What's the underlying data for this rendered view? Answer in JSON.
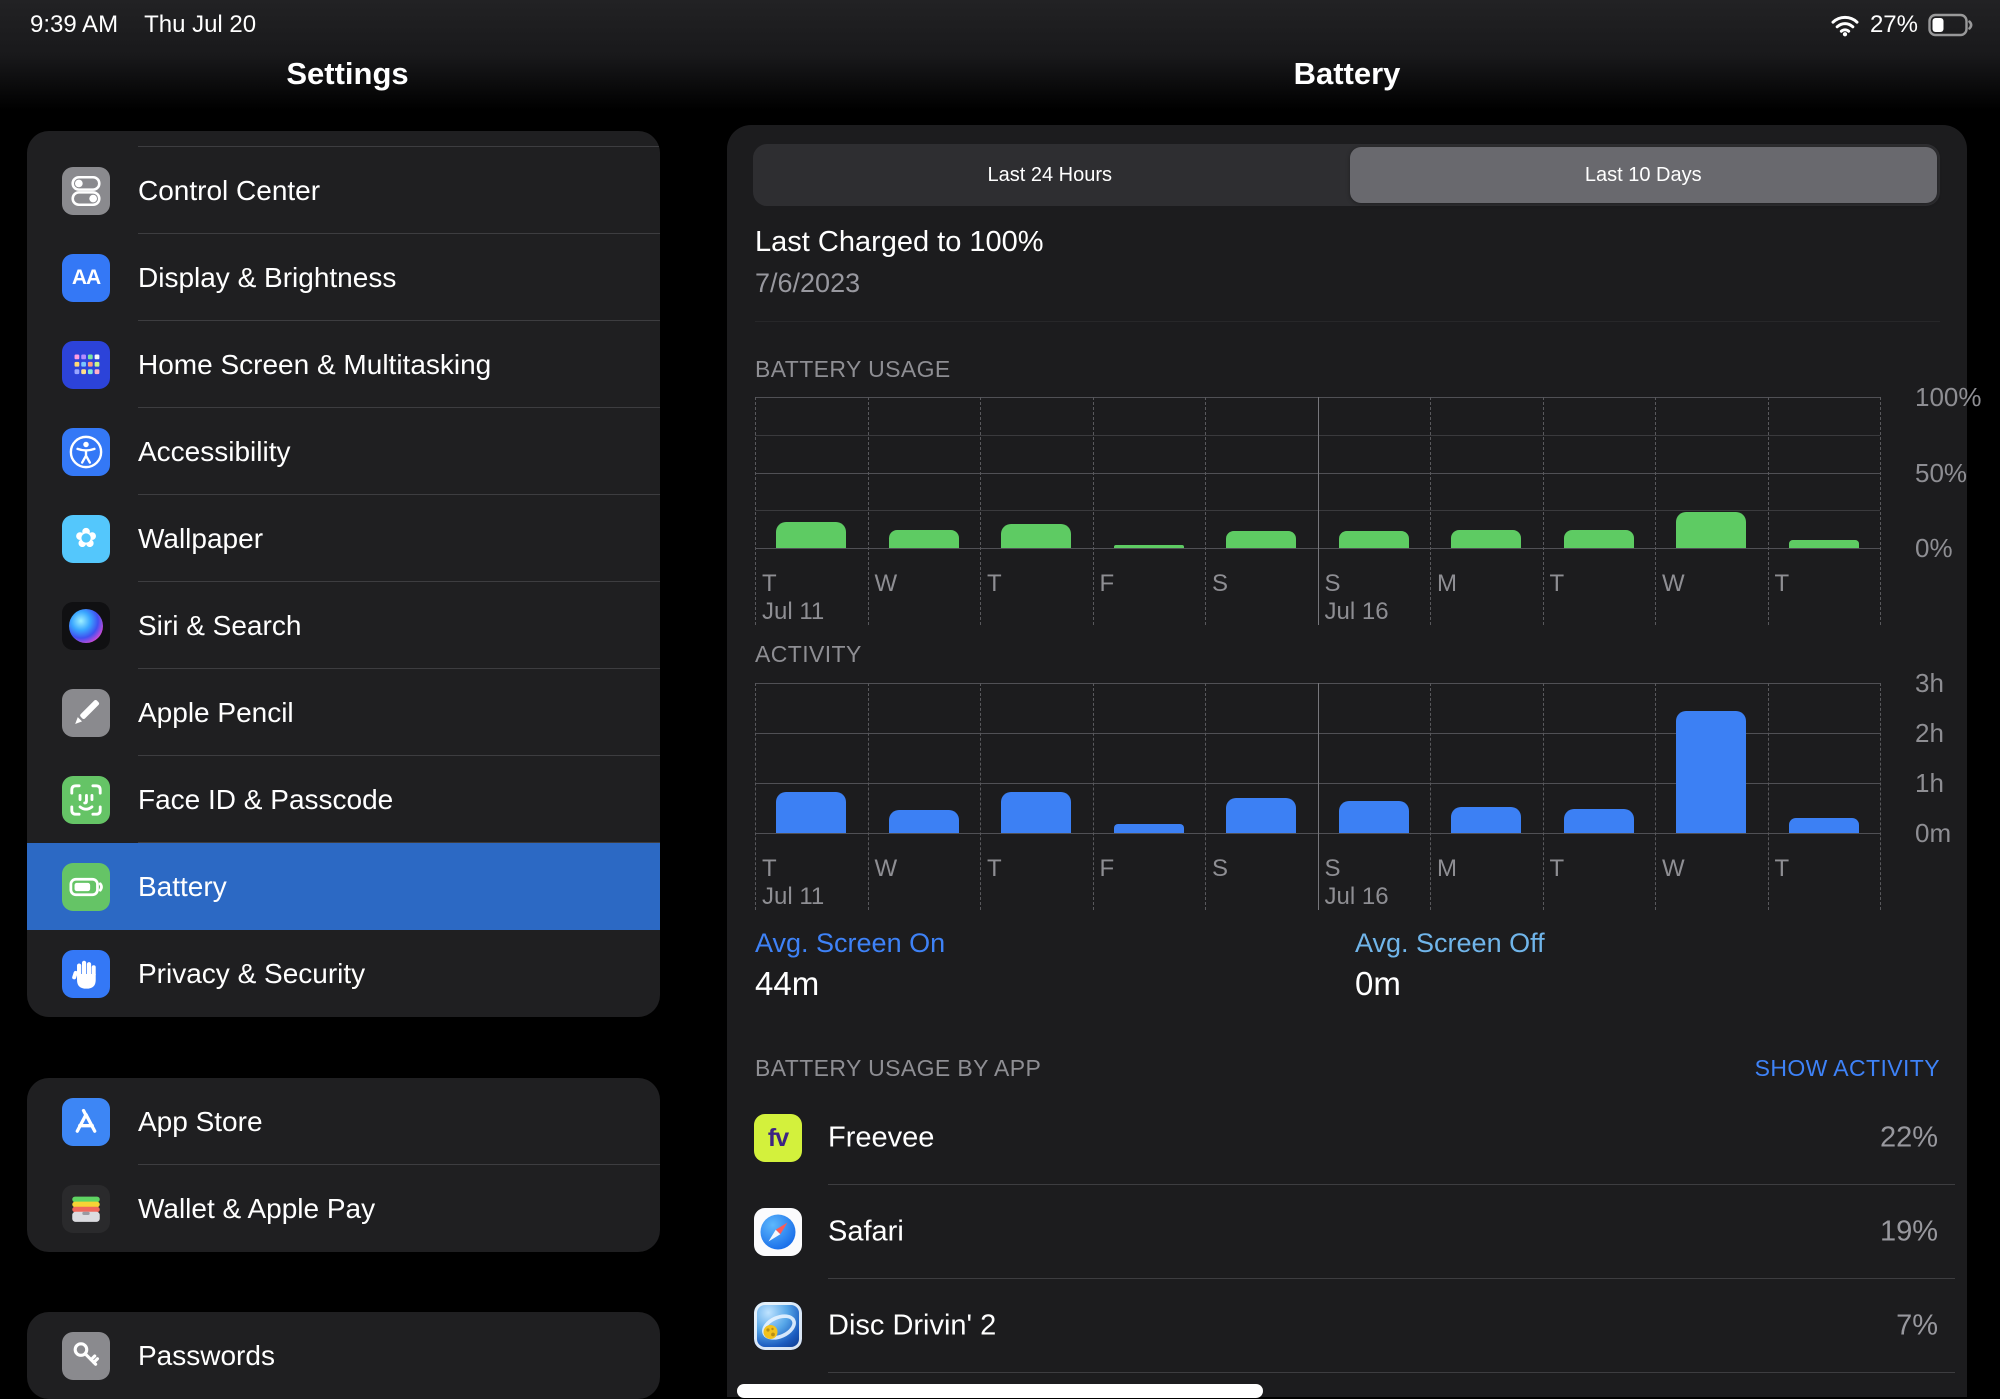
{
  "status_bar": {
    "time": "9:39 AM",
    "date": "Thu Jul 20",
    "wifi_icon": "wifi-icon",
    "battery_icon": "status-battery-icon",
    "battery_percent": "27%",
    "battery_level": 0.27
  },
  "sidebar": {
    "title": "Settings",
    "groups": [
      {
        "partial_row_above": true,
        "items": [
          {
            "label": "Control Center",
            "icon": "control-center-icon",
            "icon_bg": "#8a8a8e",
            "selected": false
          },
          {
            "label": "Display & Brightness",
            "icon": "display-brightness-icon",
            "icon_bg": "#3478f6",
            "selected": false
          },
          {
            "label": "Home Screen & Multitasking",
            "icon": "home-screen-icon",
            "icon_bg": "#2c43d9",
            "selected": false
          },
          {
            "label": "Accessibility",
            "icon": "accessibility-icon",
            "icon_bg": "#3478f6",
            "selected": false
          },
          {
            "label": "Wallpaper",
            "icon": "wallpaper-icon",
            "icon_bg": "#54c7fc",
            "selected": false
          },
          {
            "label": "Siri & Search",
            "icon": "siri-icon",
            "icon_bg": "#101012",
            "selected": false
          },
          {
            "label": "Apple Pencil",
            "icon": "apple-pencil-icon",
            "icon_bg": "#8a8a8e",
            "selected": false
          },
          {
            "label": "Face ID & Passcode",
            "icon": "face-id-icon",
            "icon_bg": "#65c466",
            "selected": false
          },
          {
            "label": "Battery",
            "icon": "battery-icon",
            "icon_bg": "#65c466",
            "selected": true
          },
          {
            "label": "Privacy & Security",
            "icon": "privacy-icon",
            "icon_bg": "#3478f6",
            "selected": false
          }
        ]
      },
      {
        "items": [
          {
            "label": "App Store",
            "icon": "app-store-icon",
            "icon_bg": "#3d86f5",
            "selected": false
          },
          {
            "label": "Wallet & Apple Pay",
            "icon": "wallet-icon",
            "icon_bg": "#2a2a2c",
            "selected": false
          }
        ]
      },
      {
        "items": [
          {
            "label": "Passwords",
            "icon": "passwords-icon",
            "icon_bg": "#8a8a8e",
            "selected": false
          }
        ]
      }
    ]
  },
  "main": {
    "title": "Battery",
    "segmented": {
      "options": [
        {
          "label": "Last 24 Hours",
          "selected": false
        },
        {
          "label": "Last 10 Days",
          "selected": true
        }
      ]
    },
    "last_charged": {
      "title": "Last Charged to 100%",
      "date": "7/6/2023"
    },
    "avg_screen_on": {
      "label": "Avg. Screen On",
      "value": "44m",
      "label_color": "#3e82f7"
    },
    "avg_screen_off": {
      "label": "Avg. Screen Off",
      "value": "0m",
      "label_color": "#70b5ea"
    },
    "usage_by_app": {
      "header": "BATTERY USAGE BY APP",
      "action": "SHOW ACTIVITY",
      "apps": [
        {
          "name": "Freevee",
          "percent": "22%",
          "icon": "freevee-icon",
          "icon_bg": "#d3f13c"
        },
        {
          "name": "Safari",
          "percent": "19%",
          "icon": "safari-icon",
          "icon_bg": "#fbfbfd"
        },
        {
          "name": "Disc Drivin' 2",
          "percent": "7%",
          "icon": "disc-drivin-icon",
          "icon_bg": "#1b5bbf"
        }
      ]
    }
  },
  "chart_data": [
    {
      "id": "battery-usage",
      "type": "bar",
      "title": "BATTERY USAGE",
      "ylabel": "",
      "unit": "percent",
      "categories": [
        "T",
        "W",
        "T",
        "F",
        "S",
        "S",
        "M",
        "T",
        "W",
        "T"
      ],
      "date_markers": [
        {
          "index": 0,
          "label": "Jul 11"
        },
        {
          "index": 5,
          "label": "Jul 16"
        }
      ],
      "values": [
        17,
        12,
        16,
        1.5,
        11.5,
        11.5,
        12,
        12,
        24,
        5.5
      ],
      "ylim": [
        0,
        100
      ],
      "yticks": [
        {
          "value": 100,
          "label": "100%"
        },
        {
          "value": 50,
          "label": "50%"
        },
        {
          "value": 0,
          "label": "0%"
        }
      ],
      "major_gridlines": [
        100,
        50,
        0
      ],
      "minor_gridlines": [
        75,
        25
      ],
      "solid_column_index": 5,
      "bar_color": "#5ecb63"
    },
    {
      "id": "activity",
      "type": "bar",
      "title": "ACTIVITY",
      "ylabel": "",
      "unit": "hours",
      "categories": [
        "T",
        "W",
        "T",
        "F",
        "S",
        "S",
        "M",
        "T",
        "W",
        "T"
      ],
      "date_markers": [
        {
          "index": 0,
          "label": "Jul 11"
        },
        {
          "index": 5,
          "label": "Jul 16"
        }
      ],
      "values": [
        0.82,
        0.46,
        0.83,
        0.18,
        0.7,
        0.64,
        0.53,
        0.49,
        2.45,
        0.31
      ],
      "ylim": [
        0,
        3
      ],
      "yticks": [
        {
          "value": 3,
          "label": "3h"
        },
        {
          "value": 2,
          "label": "2h"
        },
        {
          "value": 1,
          "label": "1h"
        },
        {
          "value": 0,
          "label": "0m"
        }
      ],
      "major_gridlines": [
        3,
        2,
        1,
        0
      ],
      "minor_gridlines": [],
      "solid_column_index": 5,
      "bar_color": "#3c80f4"
    }
  ]
}
